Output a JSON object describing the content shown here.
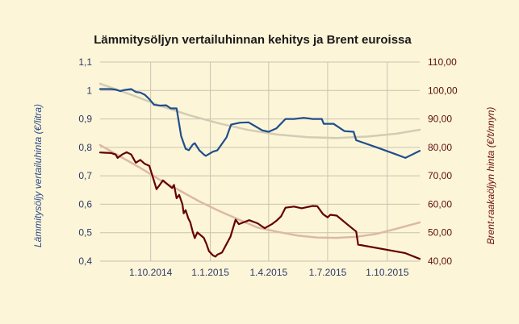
{
  "chart_data": {
    "type": "line",
    "title": "Lämmitysöljyn vertailuhinnan kehitys ja Brent euroissa",
    "ylabel_left": "Lämmitysöljy vertailuhinta (€/litra)",
    "ylabel_right": "Brent-raakaöljyn hinta (€/t/nnyn)",
    "y_left_range": [
      0.4,
      1.1
    ],
    "y_right_range": [
      40,
      110
    ],
    "y_left_ticks": [
      "0,4",
      "0,5",
      "0,6",
      "0,7",
      "0,8",
      "0,9",
      "1",
      "1,1"
    ],
    "y_right_ticks": [
      "40,00",
      "50,00",
      "60,00",
      "70,00",
      "80,00",
      "90,00",
      "100,00",
      "110,00"
    ],
    "x_range": [
      "2014-07-15",
      "2015-11-20"
    ],
    "x_ticks": [
      {
        "date": "2014-10-01",
        "label": "1.10.2014"
      },
      {
        "date": "2015-01-01",
        "label": "1.1.2015"
      },
      {
        "date": "2015-04-01",
        "label": "1.4.2015"
      },
      {
        "date": "2015-07-01",
        "label": "1.7.2015"
      },
      {
        "date": "2015-10-01",
        "label": "1.10.2015"
      }
    ],
    "grid": true,
    "colors": {
      "heating_oil": "#1f4e8c",
      "brent": "#650000",
      "trend_heating_oil": "#d2ccb4",
      "trend_brent": "#dcb9a5",
      "grid": "#c8c4b0",
      "background": "#fdf5d8"
    },
    "series": [
      {
        "axis": "left",
        "points": [
          [
            "2014-07-15",
            1.005
          ],
          [
            "2014-08-01",
            1.005
          ],
          [
            "2014-08-08",
            1.003
          ],
          [
            "2014-08-15",
            0.998
          ],
          [
            "2014-08-22",
            1.002
          ],
          [
            "2014-09-01",
            1.005
          ],
          [
            "2014-09-08",
            0.995
          ],
          [
            "2014-09-15",
            0.993
          ],
          [
            "2014-09-22",
            0.985
          ],
          [
            "2014-09-29",
            0.97
          ],
          [
            "2014-10-06",
            0.95
          ],
          [
            "2014-10-15",
            0.947
          ],
          [
            "2014-10-25",
            0.948
          ],
          [
            "2014-11-01",
            0.937
          ],
          [
            "2014-11-10",
            0.937
          ],
          [
            "2014-11-17",
            0.84
          ],
          [
            "2014-11-24",
            0.795
          ],
          [
            "2014-11-29",
            0.79
          ],
          [
            "2014-12-05",
            0.81
          ],
          [
            "2014-12-08",
            0.815
          ],
          [
            "2014-12-15",
            0.79
          ],
          [
            "2014-12-22",
            0.775
          ],
          [
            "2014-12-25",
            0.77
          ],
          [
            "2015-01-05",
            0.785
          ],
          [
            "2015-01-12",
            0.79
          ],
          [
            "2015-01-26",
            0.835
          ],
          [
            "2015-02-02",
            0.88
          ],
          [
            "2015-02-16",
            0.887
          ],
          [
            "2015-03-01",
            0.888
          ],
          [
            "2015-03-10",
            0.876
          ],
          [
            "2015-03-22",
            0.86
          ],
          [
            "2015-04-01",
            0.855
          ],
          [
            "2015-04-13",
            0.867
          ],
          [
            "2015-04-27",
            0.9
          ],
          [
            "2015-05-10",
            0.9
          ],
          [
            "2015-05-25",
            0.904
          ],
          [
            "2015-06-08",
            0.9
          ],
          [
            "2015-06-22",
            0.9
          ],
          [
            "2015-06-25",
            0.883
          ],
          [
            "2015-07-10",
            0.883
          ],
          [
            "2015-07-27",
            0.857
          ],
          [
            "2015-08-10",
            0.855
          ],
          [
            "2015-08-14",
            0.825
          ],
          [
            "2015-09-15",
            0.8
          ],
          [
            "2015-10-15",
            0.775
          ],
          [
            "2015-10-29",
            0.763
          ],
          [
            "2015-11-20",
            0.788
          ]
        ]
      },
      {
        "axis": "right",
        "points": [
          [
            "2014-07-15",
            78.2
          ],
          [
            "2014-08-01",
            78.0
          ],
          [
            "2014-08-08",
            77.5
          ],
          [
            "2014-08-11",
            76.3
          ],
          [
            "2014-08-18",
            77.5
          ],
          [
            "2014-08-25",
            78.3
          ],
          [
            "2014-09-01",
            77.5
          ],
          [
            "2014-09-08",
            74.6
          ],
          [
            "2014-09-15",
            75.6
          ],
          [
            "2014-09-22",
            74.2
          ],
          [
            "2014-09-29",
            73.5
          ],
          [
            "2014-10-06",
            68.3
          ],
          [
            "2014-10-10",
            65.3
          ],
          [
            "2014-10-15",
            66.8
          ],
          [
            "2014-10-20",
            68.4
          ],
          [
            "2014-10-27",
            67.0
          ],
          [
            "2014-11-03",
            65.7
          ],
          [
            "2014-11-06",
            66.8
          ],
          [
            "2014-11-10",
            62.1
          ],
          [
            "2014-11-14",
            63.3
          ],
          [
            "2014-11-19",
            60.0
          ],
          [
            "2014-11-21",
            56.8
          ],
          [
            "2014-11-24",
            57.9
          ],
          [
            "2014-11-28",
            55.1
          ],
          [
            "2014-12-01",
            53.7
          ],
          [
            "2014-12-05",
            50.2
          ],
          [
            "2014-12-08",
            48.1
          ],
          [
            "2014-12-12",
            50.1
          ],
          [
            "2014-12-22",
            48.2
          ],
          [
            "2014-12-26",
            46.1
          ],
          [
            "2014-12-30",
            43.5
          ],
          [
            "2015-01-05",
            42.0
          ],
          [
            "2015-01-09",
            41.6
          ],
          [
            "2015-01-12",
            42.3
          ],
          [
            "2015-01-19",
            43.0
          ],
          [
            "2015-02-01",
            48.6
          ],
          [
            "2015-02-09",
            54.6
          ],
          [
            "2015-02-14",
            53.0
          ],
          [
            "2015-03-02",
            54.4
          ],
          [
            "2015-03-15",
            53.3
          ],
          [
            "2015-03-26",
            51.6
          ],
          [
            "2015-04-06",
            53.0
          ],
          [
            "2015-04-13",
            54.2
          ],
          [
            "2015-04-20",
            55.7
          ],
          [
            "2015-04-27",
            58.8
          ],
          [
            "2015-05-10",
            59.2
          ],
          [
            "2015-05-22",
            58.6
          ],
          [
            "2015-06-08",
            59.4
          ],
          [
            "2015-06-15",
            59.3
          ],
          [
            "2015-06-24",
            56.5
          ],
          [
            "2015-07-01",
            55.4
          ],
          [
            "2015-07-05",
            56.3
          ],
          [
            "2015-07-15",
            56.0
          ],
          [
            "2015-08-01",
            52.8
          ],
          [
            "2015-08-14",
            50.4
          ],
          [
            "2015-08-17",
            45.8
          ],
          [
            "2015-10-29",
            42.8
          ],
          [
            "2015-11-20",
            40.8
          ]
        ]
      },
      {
        "axis": "left",
        "points": [
          [
            "2014-07-15",
            1.024
          ],
          [
            "2014-09-01",
            0.985
          ],
          [
            "2014-10-15",
            0.947
          ],
          [
            "2014-12-01",
            0.912
          ],
          [
            "2015-01-15",
            0.884
          ],
          [
            "2015-03-01",
            0.861
          ],
          [
            "2015-04-15",
            0.845
          ],
          [
            "2015-06-01",
            0.836
          ],
          [
            "2015-07-15",
            0.833
          ],
          [
            "2015-09-01",
            0.838
          ],
          [
            "2015-10-15",
            0.848
          ],
          [
            "2015-11-20",
            0.862
          ]
        ]
      },
      {
        "axis": "right",
        "points": [
          [
            "2014-07-15",
            80.8
          ],
          [
            "2014-08-15",
            76.8
          ],
          [
            "2014-09-15",
            72.8
          ],
          [
            "2014-10-15",
            68.6
          ],
          [
            "2014-11-15",
            64.8
          ],
          [
            "2014-12-15",
            61.0
          ],
          [
            "2015-01-15",
            57.6
          ],
          [
            "2015-02-15",
            54.5
          ],
          [
            "2015-03-15",
            51.8
          ],
          [
            "2015-04-15",
            50.3
          ],
          [
            "2015-05-15",
            49.0
          ],
          [
            "2015-06-15",
            48.3
          ],
          [
            "2015-07-15",
            48.2
          ],
          [
            "2015-08-15",
            48.6
          ],
          [
            "2015-09-15",
            49.6
          ],
          [
            "2015-10-15",
            51.4
          ],
          [
            "2015-11-20",
            53.6
          ]
        ]
      }
    ]
  }
}
